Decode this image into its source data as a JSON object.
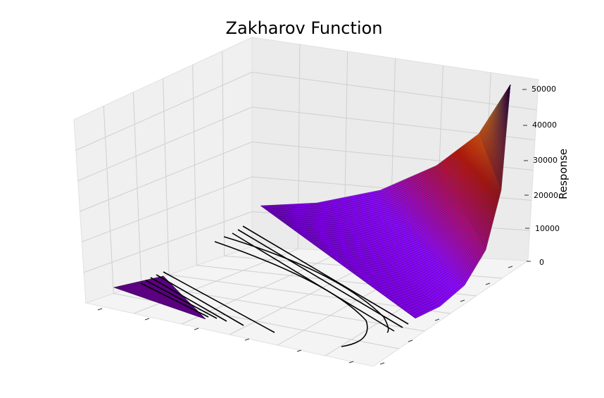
{
  "chart_data": {
    "type": "surface3d",
    "title": "Zakharov Function",
    "zlabel": "Response",
    "zlim": [
      0,
      50000
    ],
    "z_ticks": [
      "0",
      "10000",
      "20000",
      "30000",
      "40000",
      "50000"
    ],
    "colormap": [
      "#2a0040",
      "#6a00a8",
      "#8b0aff",
      "#a020f0",
      "#c8102e",
      "#ff7f00",
      "#ffe000"
    ],
    "grid": true,
    "background_panes": "#f2f2f2",
    "contour_color": "#000000",
    "surface_rows": 60
  }
}
